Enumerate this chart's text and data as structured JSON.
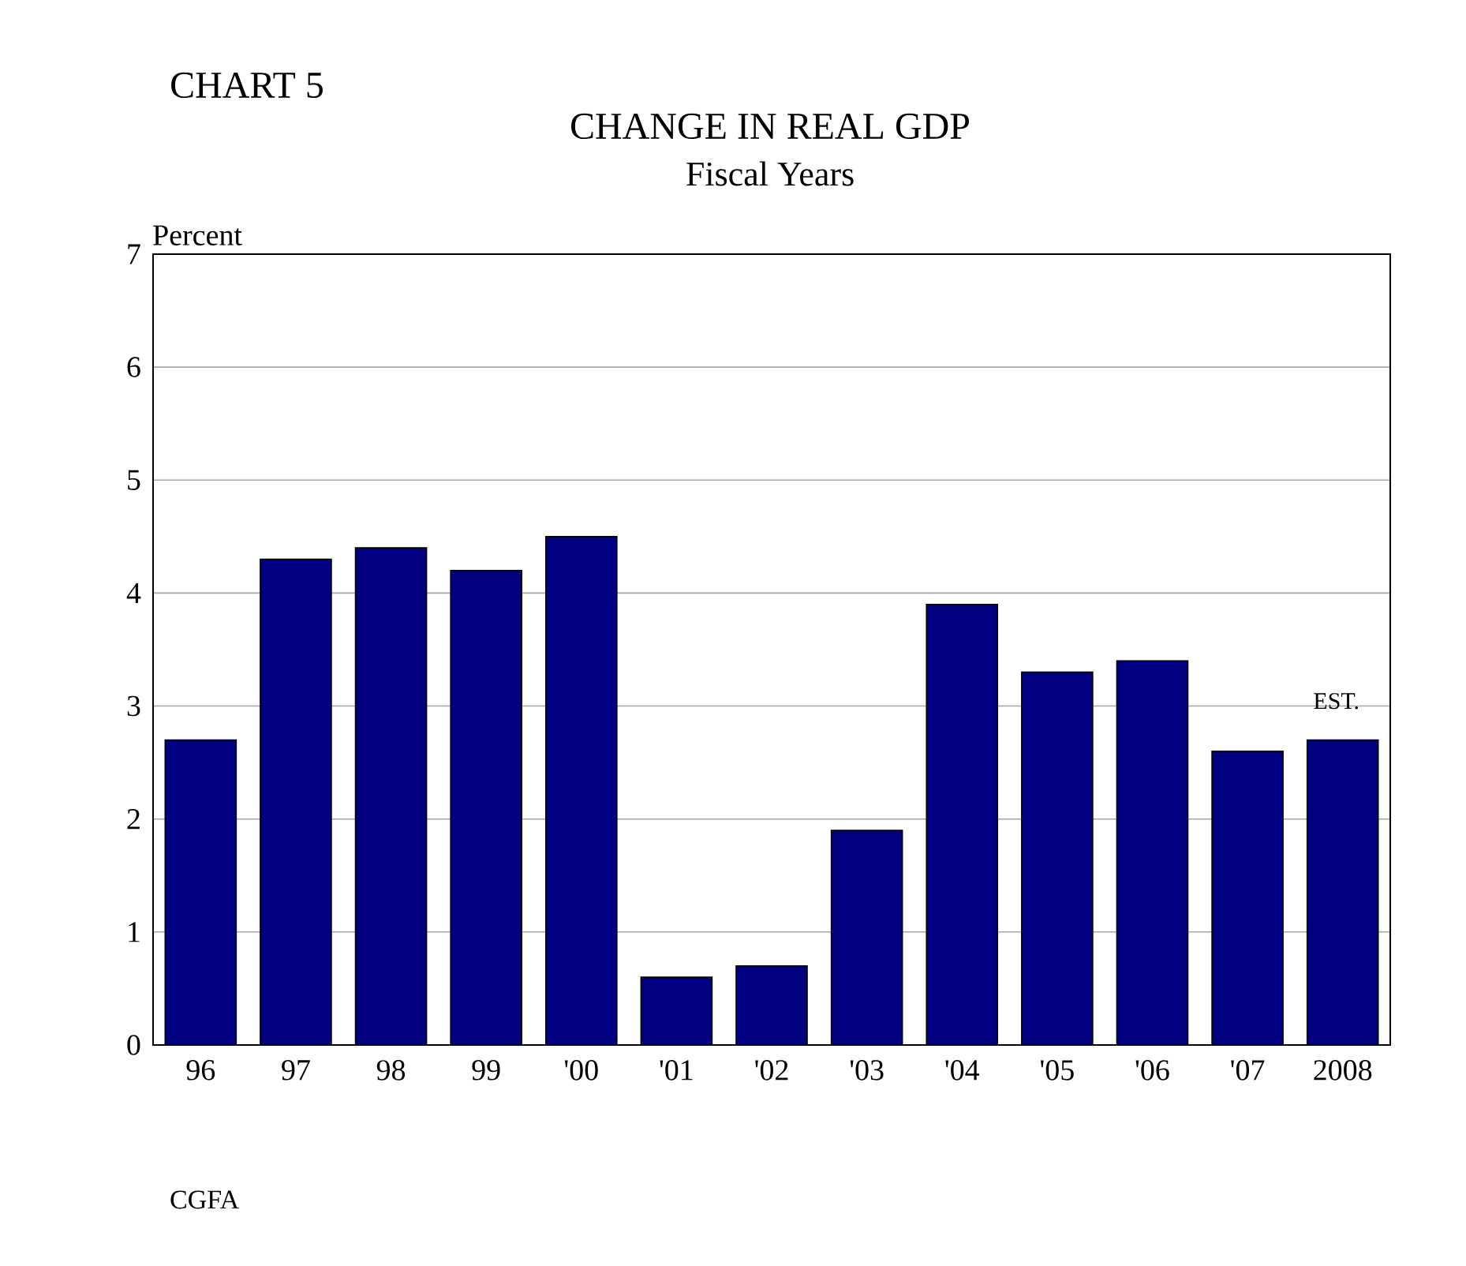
{
  "chart_data": {
    "type": "bar",
    "title": "CHANGE IN REAL GDP",
    "subtitle": "Fiscal Years",
    "ylabel": "Percent",
    "categories": [
      "96",
      "97",
      "98",
      "99",
      "'00",
      "'01",
      "'02",
      "'03",
      "'04",
      "'05",
      "'06",
      "'07",
      "2008"
    ],
    "values": [
      2.7,
      4.3,
      4.4,
      4.2,
      4.5,
      0.6,
      0.7,
      1.9,
      3.9,
      3.3,
      3.4,
      2.6,
      2.7
    ],
    "color": "#000080",
    "ylim": [
      0,
      7
    ],
    "yticks": [
      0,
      1,
      2,
      3,
      4,
      5,
      6,
      7
    ],
    "grid": "y",
    "annotations": [
      "CHART 5",
      {
        "text": "EST.",
        "x": "2008",
        "y": 2.7
      },
      "CGFA"
    ]
  }
}
